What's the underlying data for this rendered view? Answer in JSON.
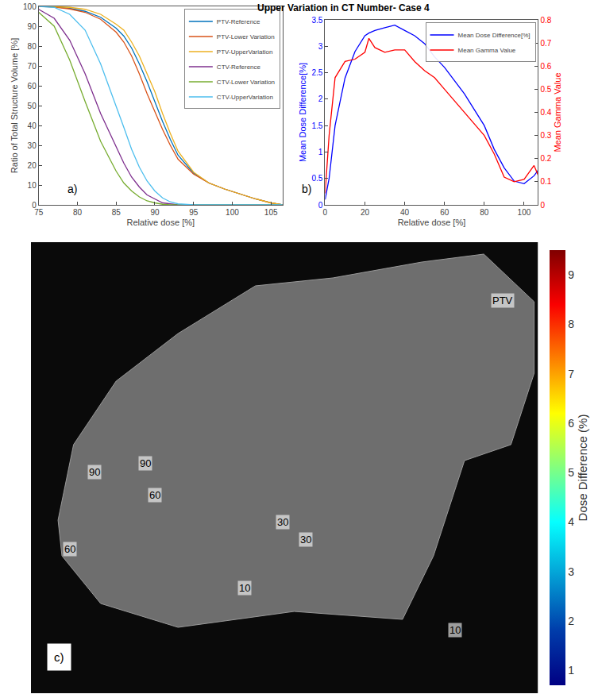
{
  "chart_data": [
    {
      "type": "line",
      "label": "a)",
      "x_label": "Relative dose [%]",
      "y_label": "Ratio of Total Structure Volume [%]",
      "x": [
        75,
        77,
        79,
        81,
        83,
        85,
        86,
        87,
        88,
        89,
        90,
        91,
        92,
        93,
        95,
        97,
        99,
        101,
        103,
        105,
        106.5
      ],
      "xlim": [
        75,
        106.5
      ],
      "xticks": [
        75,
        80,
        85,
        90,
        95,
        100,
        105
      ],
      "ylim": [
        0,
        100
      ],
      "yticks": [
        0,
        10,
        20,
        30,
        40,
        50,
        60,
        70,
        80,
        90,
        100
      ],
      "legend": "upper right",
      "grid": false,
      "series": [
        {
          "name": "PTV-Reference",
          "color": "#0072BD",
          "values": [
            100,
            99.8,
            99,
            97.5,
            94.5,
            89,
            85,
            79,
            71,
            62,
            52,
            42,
            33,
            25,
            16,
            11,
            8,
            5.5,
            3,
            1,
            0
          ]
        },
        {
          "name": "PTV-Lower Variation",
          "color": "#D95319",
          "values": [
            100,
            99.7,
            98.7,
            97,
            93.5,
            87,
            82,
            75,
            66,
            56,
            47,
            38,
            30,
            23,
            15.5,
            11,
            8,
            5.5,
            3,
            1,
            0
          ]
        },
        {
          "name": "PTV-UpperVariation",
          "color": "#EDB120",
          "values": [
            100,
            99.9,
            99.5,
            98.5,
            96,
            91,
            88,
            82,
            75,
            66,
            57,
            46,
            36,
            27,
            16.5,
            11,
            8,
            5.5,
            3,
            1,
            0
          ]
        },
        {
          "name": "CTV-Reference",
          "color": "#7E2F8E",
          "values": [
            98.5,
            94,
            83,
            66,
            46,
            29,
            21,
            14,
            9,
            5,
            3,
            1,
            0.5,
            0,
            0,
            0,
            0,
            0,
            0,
            0,
            0
          ]
        },
        {
          "name": "CTV-Lower Variation",
          "color": "#77AC30",
          "values": [
            97,
            90,
            73,
            52,
            32,
            17,
            11,
            7,
            4,
            2,
            1,
            0.3,
            0,
            0,
            0,
            0,
            0,
            0,
            0,
            0,
            0
          ]
        },
        {
          "name": "CTV-UpperVariation",
          "color": "#4DBEEE",
          "values": [
            100,
            99.5,
            96,
            88,
            71,
            50,
            39,
            28,
            19,
            12,
            7,
            3.5,
            1.5,
            0.5,
            0,
            0,
            0,
            0,
            0,
            0,
            0
          ]
        }
      ]
    },
    {
      "type": "line",
      "label": "b)",
      "title": "Upper Variation in CT Number- Case 4",
      "x_label": "Relative dose [%]",
      "y_label": "Mean Dose Difference[%]",
      "y2_label": "Mean Gamma Value",
      "x": [
        0,
        2,
        5,
        10,
        15,
        20,
        22,
        25,
        30,
        35,
        40,
        45,
        50,
        55,
        60,
        65,
        70,
        75,
        80,
        85,
        90,
        95,
        100,
        105,
        107
      ],
      "xlim": [
        0,
        107
      ],
      "xticks": [
        0,
        20,
        40,
        60,
        80,
        100
      ],
      "ylim": [
        0,
        3.5
      ],
      "yticks": [
        0,
        0.5,
        1,
        1.5,
        2,
        2.5,
        3,
        3.5
      ],
      "y2lim": [
        0,
        0.8
      ],
      "y2ticks": [
        0,
        0.1,
        0.2,
        0.3,
        0.4,
        0.5,
        0.6,
        0.7,
        0.8
      ],
      "legend": "upper right",
      "grid": false,
      "series": [
        {
          "name": "Mean Dose Difference[%]",
          "color": "#0000FF",
          "values": [
            0.1,
            0.5,
            1.5,
            2.4,
            2.9,
            3.2,
            3.25,
            3.3,
            3.35,
            3.4,
            3.3,
            3.2,
            3.05,
            2.8,
            2.6,
            2.35,
            2.1,
            1.8,
            1.5,
            1.05,
            0.7,
            0.45,
            0.4,
            0.55,
            0.65
          ]
        },
        {
          "name": "Mean Gamma Value",
          "color": "#FF0000",
          "axis": "y2",
          "values": [
            0.05,
            0.3,
            0.55,
            0.62,
            0.63,
            0.66,
            0.72,
            0.68,
            0.66,
            0.67,
            0.67,
            0.62,
            0.58,
            0.55,
            0.5,
            0.45,
            0.4,
            0.35,
            0.3,
            0.22,
            0.12,
            0.1,
            0.11,
            0.17,
            0.13
          ]
        }
      ]
    },
    {
      "type": "image",
      "label": "c)",
      "colorbar": {
        "title": "Dose Difference (%)",
        "range": [
          0.7,
          9.5
        ],
        "ticks": [
          1,
          2,
          3,
          4,
          5,
          6,
          7,
          8,
          9
        ]
      },
      "annotations": [
        "PTV",
        "90",
        "90",
        "60",
        "60",
        "30",
        "30",
        "10",
        "10"
      ]
    }
  ]
}
